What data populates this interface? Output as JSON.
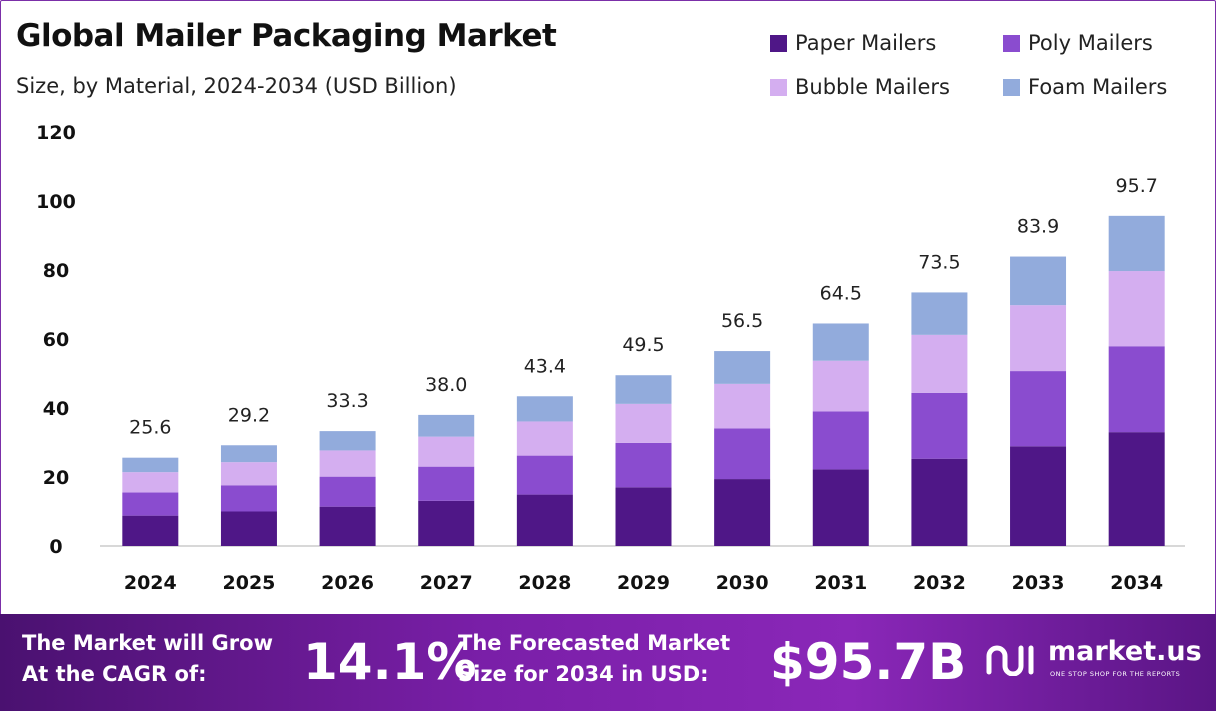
{
  "colors": {
    "paper": "#4f1787",
    "poly": "#8a4ccf",
    "bubble": "#d4aef0",
    "foam": "#92abdc",
    "axis": "#cccccc"
  },
  "chart_data": {
    "type": "bar",
    "stacked": true,
    "title": "Global Mailer Packaging Market",
    "subtitle": "Size, by Material, 2024-2034 (USD Billion)",
    "xlabel": "",
    "ylabel": "",
    "ylim": [
      0,
      120
    ],
    "yticks": [
      "0",
      "20",
      "40",
      "60",
      "80",
      "100",
      "120"
    ],
    "categories": [
      "2024",
      "2025",
      "2026",
      "2027",
      "2028",
      "2029",
      "2030",
      "2031",
      "2032",
      "2033",
      "2034"
    ],
    "totals": [
      "25.6",
      "29.2",
      "33.3",
      "38.0",
      "43.4",
      "49.5",
      "56.5",
      "64.5",
      "73.5",
      "83.9",
      "95.7"
    ],
    "series": [
      {
        "name": "Paper Mailers",
        "color_key": "paper",
        "values": [
          8.8,
          10.0,
          11.4,
          13.1,
          14.9,
          17.0,
          19.4,
          22.2,
          25.3,
          28.9,
          33.0
        ]
      },
      {
        "name": "Poly Mailers",
        "color_key": "poly",
        "values": [
          6.7,
          7.6,
          8.7,
          9.9,
          11.3,
          12.9,
          14.7,
          16.8,
          19.1,
          21.8,
          24.9
        ]
      },
      {
        "name": "Bubble Mailers",
        "color_key": "bubble",
        "values": [
          5.9,
          6.7,
          7.6,
          8.7,
          9.9,
          11.3,
          12.9,
          14.7,
          16.8,
          19.1,
          21.8
        ]
      },
      {
        "name": "Foam Mailers",
        "color_key": "foam",
        "values": [
          4.2,
          4.9,
          5.6,
          6.3,
          7.3,
          8.3,
          9.5,
          10.8,
          12.3,
          14.1,
          16.0
        ]
      }
    ],
    "legend_position": "top-right"
  },
  "footer": {
    "cagr_label_line1": "The Market will Grow",
    "cagr_label_line2": "At the CAGR of:",
    "cagr_value": "14.1%",
    "forecast_label_line1": "The Forecasted Market",
    "forecast_label_line2": "Size for 2034 in USD:",
    "forecast_value": "$95.7B",
    "brand_name": "market.us",
    "brand_tagline": "ONE STOP SHOP FOR THE REPORTS"
  }
}
